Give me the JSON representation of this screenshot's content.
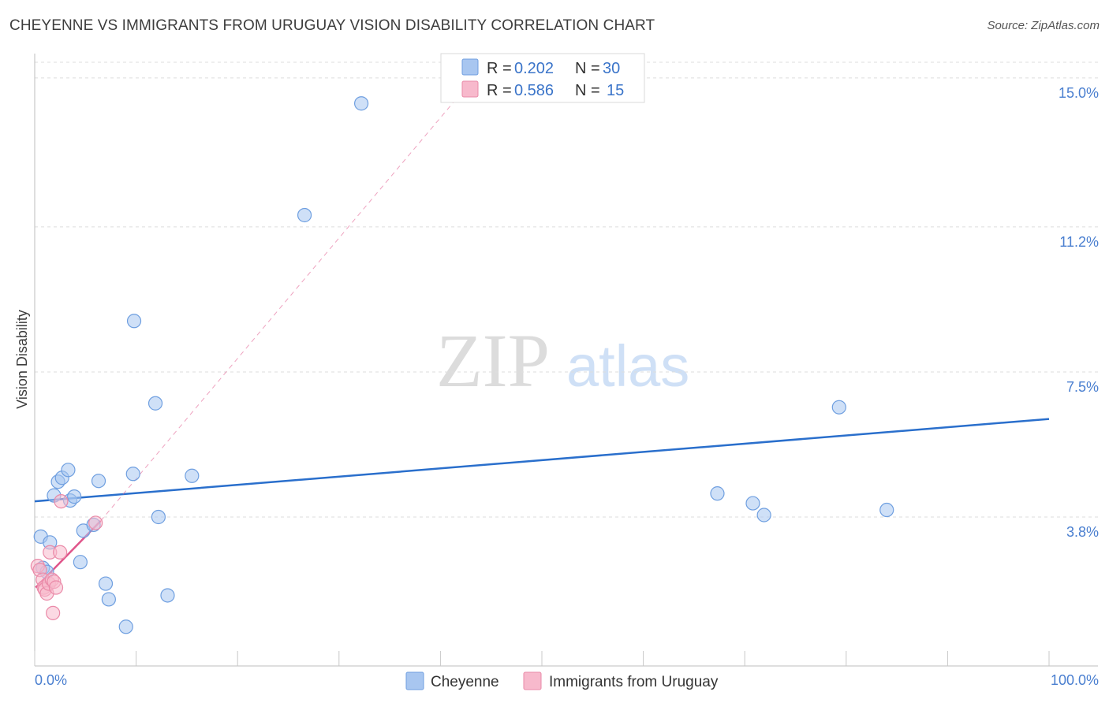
{
  "title": "CHEYENNE VS IMMIGRANTS FROM URUGUAY VISION DISABILITY CORRELATION CHART",
  "source": "Source: ZipAtlas.com",
  "watermark": {
    "zip": "ZIP",
    "atlas": "atlas"
  },
  "legend": {
    "rows": [
      {
        "r_label": "R = ",
        "r_value": "0.202",
        "n_label": "N = ",
        "n_value": "30",
        "color": "#a8c6f0",
        "border": "#6f9fe0"
      },
      {
        "r_label": "R = ",
        "r_value": "0.586",
        "n_label": "N = ",
        "n_value": "15",
        "color": "#f7b9cc",
        "border": "#ea8aa8"
      }
    ]
  },
  "chart_data": {
    "type": "scatter",
    "xlabel": "",
    "ylabel": "Vision Disability",
    "xlim": [
      0,
      100
    ],
    "ylim": [
      0,
      15.4
    ],
    "x_tick_labels": [
      {
        "value": 0,
        "label": "0.0%"
      },
      {
        "value": 100,
        "label": "100.0%"
      }
    ],
    "y_ticks": [
      {
        "value": 3.8,
        "label": "3.8%"
      },
      {
        "value": 7.5,
        "label": "7.5%"
      },
      {
        "value": 11.2,
        "label": "11.2%"
      },
      {
        "value": 15.0,
        "label": "15.0%"
      }
    ],
    "x_minor_ticks": [
      0,
      10,
      20,
      30,
      40,
      50,
      60,
      70,
      80,
      90,
      100
    ],
    "grid": "horizontal-dashed",
    "series": [
      {
        "name": "Cheyenne",
        "color": "#a8c6f0",
        "stroke": "#6f9fe0",
        "trend_color": "#2a6fcc",
        "trend": {
          "x": [
            0,
            100
          ],
          "y": [
            4.2,
            6.3
          ]
        },
        "points": [
          {
            "x": 0.6,
            "y": 3.3
          },
          {
            "x": 0.8,
            "y": 2.5
          },
          {
            "x": 1.2,
            "y": 2.4
          },
          {
            "x": 1.5,
            "y": 3.15
          },
          {
            "x": 1.9,
            "y": 4.35
          },
          {
            "x": 2.3,
            "y": 4.7
          },
          {
            "x": 2.7,
            "y": 4.8
          },
          {
            "x": 3.3,
            "y": 5.0
          },
          {
            "x": 3.5,
            "y": 4.22
          },
          {
            "x": 3.9,
            "y": 4.32
          },
          {
            "x": 4.5,
            "y": 2.65
          },
          {
            "x": 4.8,
            "y": 3.45
          },
          {
            "x": 5.8,
            "y": 3.6
          },
          {
            "x": 6.3,
            "y": 4.72
          },
          {
            "x": 7.0,
            "y": 2.1
          },
          {
            "x": 7.3,
            "y": 1.7
          },
          {
            "x": 9.0,
            "y": 1.0
          },
          {
            "x": 9.7,
            "y": 4.9
          },
          {
            "x": 9.8,
            "y": 8.8
          },
          {
            "x": 11.9,
            "y": 6.7
          },
          {
            "x": 12.2,
            "y": 3.8
          },
          {
            "x": 13.1,
            "y": 1.8
          },
          {
            "x": 15.5,
            "y": 4.85
          },
          {
            "x": 26.6,
            "y": 11.5
          },
          {
            "x": 32.2,
            "y": 14.35
          },
          {
            "x": 67.3,
            "y": 4.4
          },
          {
            "x": 70.8,
            "y": 4.15
          },
          {
            "x": 71.9,
            "y": 3.85
          },
          {
            "x": 79.3,
            "y": 6.6
          },
          {
            "x": 84.0,
            "y": 3.98
          }
        ]
      },
      {
        "name": "Immigrants from Uruguay",
        "color": "#f7b9cc",
        "stroke": "#ea8aa8",
        "trend_color": "#e0558a",
        "trend": {
          "x": [
            0.1,
            6.5
          ],
          "y": [
            2.0,
            3.7
          ]
        },
        "trend_extended": {
          "x": [
            6.5,
            42.0
          ],
          "y": [
            3.7,
            14.6
          ]
        },
        "points": [
          {
            "x": 0.3,
            "y": 2.55
          },
          {
            "x": 0.5,
            "y": 2.45
          },
          {
            "x": 0.8,
            "y": 2.2
          },
          {
            "x": 0.9,
            "y": 2.0
          },
          {
            "x": 1.0,
            "y": 1.95
          },
          {
            "x": 1.2,
            "y": 1.85
          },
          {
            "x": 1.4,
            "y": 2.1
          },
          {
            "x": 1.5,
            "y": 2.9
          },
          {
            "x": 1.7,
            "y": 2.2
          },
          {
            "x": 1.9,
            "y": 2.15
          },
          {
            "x": 1.8,
            "y": 1.35
          },
          {
            "x": 2.1,
            "y": 2.0
          },
          {
            "x": 2.5,
            "y": 2.9
          },
          {
            "x": 2.6,
            "y": 4.2
          },
          {
            "x": 6.0,
            "y": 3.65
          }
        ]
      }
    ]
  },
  "bottom_legend": [
    {
      "label": "Cheyenne",
      "color": "#a8c6f0",
      "border": "#6f9fe0"
    },
    {
      "label": "Immigrants from Uruguay",
      "color": "#f7b9cc",
      "border": "#ea8aa8"
    }
  ]
}
